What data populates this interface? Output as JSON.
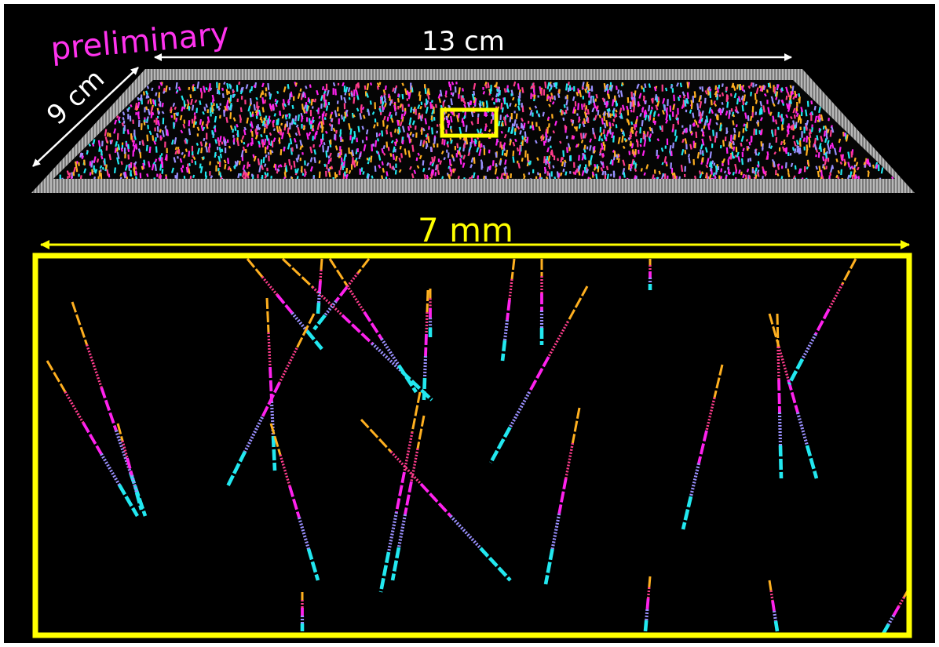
{
  "labels": {
    "watermark": "preliminary",
    "length": "13 cm",
    "width": "9 cm",
    "zoom_length": "7 mm"
  }
}
